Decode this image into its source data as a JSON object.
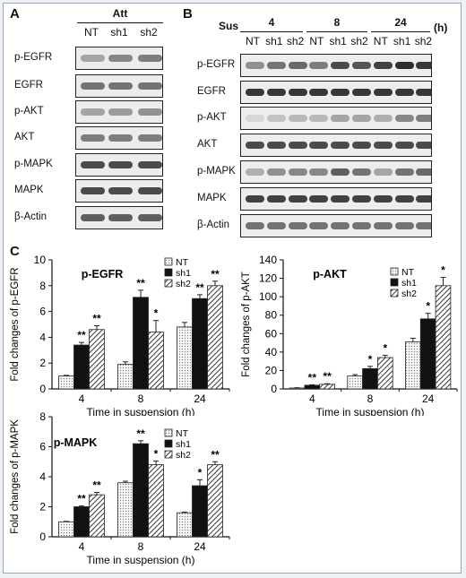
{
  "panel_a": {
    "letter": "A",
    "header": "Att",
    "lanes": [
      "NT",
      "sh1",
      "sh2"
    ],
    "rows": [
      "p-EGFR",
      "EGFR",
      "p-AKT",
      "AKT",
      "p-MAPK",
      "MAPK",
      "β-Actin"
    ]
  },
  "panel_b": {
    "letter": "B",
    "sus_label": "Sus",
    "unit": "(h)",
    "times": [
      "4",
      "8",
      "24"
    ],
    "lanes": [
      "NT",
      "sh1",
      "sh2",
      "NT",
      "sh1",
      "sh2",
      "NT",
      "sh1",
      "sh2"
    ],
    "rows": [
      "p-EGFR",
      "EGFR",
      "p-AKT",
      "AKT",
      "p-MAPK",
      "MAPK",
      "β-Actin"
    ]
  },
  "panel_c": {
    "letter": "C"
  },
  "chart_data": [
    {
      "type": "bar",
      "title": "p-EGFR",
      "categories": [
        "4",
        "8",
        "24"
      ],
      "xlabel": "Time in suspension (h)",
      "ylabel": "Fold changes of p-EGFR",
      "ylim": [
        0,
        10
      ],
      "yticks": [
        "0",
        "2",
        "4",
        "6",
        "8",
        "10"
      ],
      "legend": [
        "NT",
        "sh1",
        "sh2"
      ],
      "series": [
        {
          "name": "NT",
          "values": [
            1.0,
            1.9,
            4.8
          ],
          "errors": [
            0.05,
            0.2,
            0.35
          ]
        },
        {
          "name": "sh1",
          "values": [
            3.4,
            7.1,
            7.0
          ],
          "errors": [
            0.2,
            0.55,
            0.3
          ]
        },
        {
          "name": "sh2",
          "values": [
            4.6,
            4.4,
            8.0
          ],
          "errors": [
            0.3,
            0.9,
            0.35
          ]
        }
      ],
      "annotations": [
        [
          "",
          "**",
          "**"
        ],
        [
          "",
          "**",
          "*"
        ],
        [
          "",
          "**",
          "**"
        ]
      ]
    },
    {
      "type": "bar",
      "title": "p-AKT",
      "categories": [
        "4",
        "8",
        "24"
      ],
      "xlabel": "Time in suspension (h)",
      "ylabel": "Fold changes of p-AKT",
      "ylim": [
        0,
        140
      ],
      "yticks": [
        "0",
        "20",
        "40",
        "60",
        "80",
        "100",
        "120",
        "140"
      ],
      "legend": [
        "NT",
        "sh1",
        "sh2"
      ],
      "series": [
        {
          "name": "NT",
          "values": [
            1,
            14,
            51
          ],
          "errors": [
            0.3,
            1.5,
            4
          ]
        },
        {
          "name": "sh1",
          "values": [
            4,
            22,
            76
          ],
          "errors": [
            0.5,
            2.5,
            6
          ]
        },
        {
          "name": "sh2",
          "values": [
            5,
            34,
            112
          ],
          "errors": [
            0.6,
            2.5,
            9
          ]
        }
      ],
      "annotations": [
        [
          "",
          "**",
          "**"
        ],
        [
          "",
          "*",
          "*"
        ],
        [
          "",
          "*",
          "*"
        ]
      ]
    },
    {
      "type": "bar",
      "title": "p-MAPK",
      "categories": [
        "4",
        "8",
        "24"
      ],
      "xlabel": "Time in suspension (h)",
      "ylabel": "Fold changes of p-MAPK",
      "ylim": [
        0,
        8
      ],
      "yticks": [
        "0",
        "2",
        "4",
        "6",
        "8"
      ],
      "legend": [
        "NT",
        "sh1",
        "sh2"
      ],
      "series": [
        {
          "name": "NT",
          "values": [
            1.0,
            3.6,
            1.6
          ],
          "errors": [
            0.03,
            0.1,
            0.04
          ]
        },
        {
          "name": "sh1",
          "values": [
            2.0,
            6.2,
            3.4
          ],
          "errors": [
            0.05,
            0.2,
            0.4
          ]
        },
        {
          "name": "sh2",
          "values": [
            2.8,
            4.8,
            4.8
          ],
          "errors": [
            0.15,
            0.25,
            0.2
          ]
        }
      ],
      "annotations": [
        [
          "",
          "**",
          "**"
        ],
        [
          "",
          "**",
          "*"
        ],
        [
          "",
          "*",
          "**"
        ]
      ]
    }
  ]
}
